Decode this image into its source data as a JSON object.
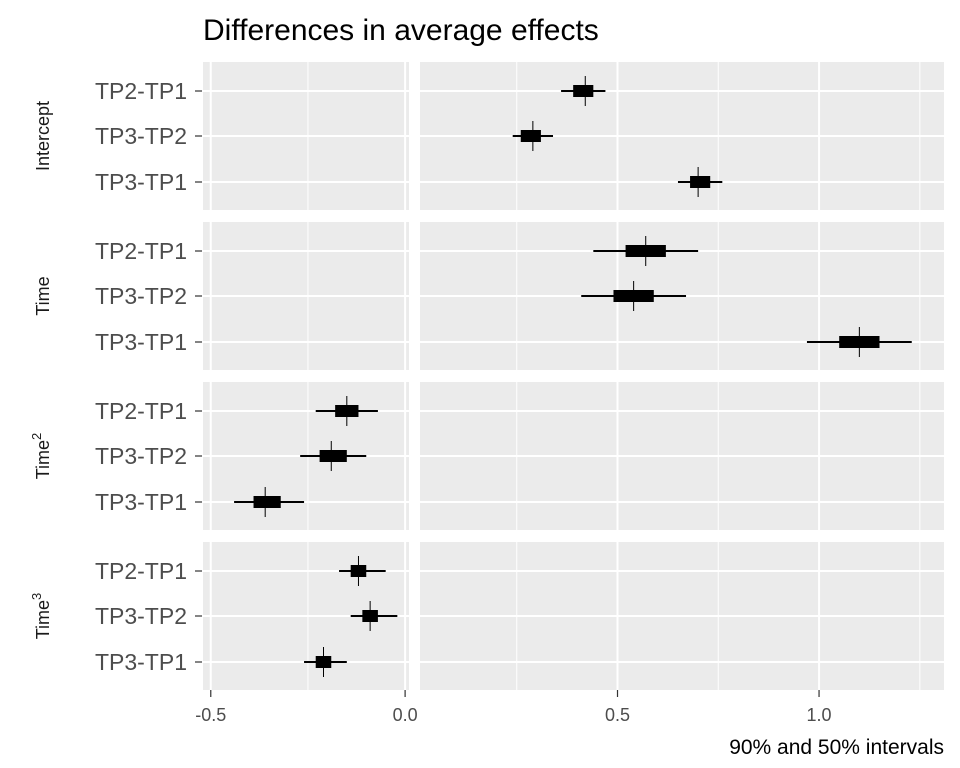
{
  "chart_data": {
    "type": "interval",
    "title": "Differences in average effects",
    "caption": "90% and 50% intervals",
    "x_ticks": [
      -0.5,
      0.0,
      0.5,
      1.0
    ],
    "x_tick_labels": [
      "-0.5",
      "0.0",
      "0.5",
      "1.0"
    ],
    "xlim": [
      -0.52,
      1.31
    ],
    "categories": [
      "TP2-TP1",
      "TP3-TP2",
      "TP3-TP1"
    ],
    "facets": [
      {
        "label": "Intercept",
        "sup": "",
        "rows": [
          {
            "label": "TP2-TP1",
            "median": 0.42,
            "lo50": 0.39,
            "hi50": 0.44,
            "lo90": 0.36,
            "hi90": 0.47
          },
          {
            "label": "TP3-TP2",
            "median": 0.29,
            "lo50": 0.26,
            "hi50": 0.31,
            "lo90": 0.24,
            "hi90": 0.34
          },
          {
            "label": "TP3-TP1",
            "median": 0.7,
            "lo50": 0.68,
            "hi50": 0.73,
            "lo90": 0.65,
            "hi90": 0.76
          }
        ]
      },
      {
        "label": "Time",
        "sup": "",
        "rows": [
          {
            "label": "TP2-TP1",
            "median": 0.57,
            "lo50": 0.52,
            "hi50": 0.62,
            "lo90": 0.44,
            "hi90": 0.7
          },
          {
            "label": "TP3-TP2",
            "median": 0.54,
            "lo50": 0.49,
            "hi50": 0.59,
            "lo90": 0.41,
            "hi90": 0.67
          },
          {
            "label": "TP3-TP1",
            "median": 1.1,
            "lo50": 1.05,
            "hi50": 1.15,
            "lo90": 0.97,
            "hi90": 1.23
          }
        ]
      },
      {
        "label": "Time",
        "sup": "2",
        "rows": [
          {
            "label": "TP2-TP1",
            "median": -0.15,
            "lo50": -0.18,
            "hi50": -0.12,
            "lo90": -0.23,
            "hi90": -0.07
          },
          {
            "label": "TP3-TP2",
            "median": -0.19,
            "lo50": -0.22,
            "hi50": -0.15,
            "lo90": -0.27,
            "hi90": -0.1
          },
          {
            "label": "TP3-TP1",
            "median": -0.36,
            "lo50": -0.39,
            "hi50": -0.32,
            "lo90": -0.44,
            "hi90": -0.26
          }
        ]
      },
      {
        "label": "Time",
        "sup": "3",
        "rows": [
          {
            "label": "TP2-TP1",
            "median": -0.12,
            "lo50": -0.14,
            "hi50": -0.1,
            "lo90": -0.17,
            "hi90": -0.05
          },
          {
            "label": "TP3-TP2",
            "median": -0.09,
            "lo50": -0.11,
            "hi50": -0.07,
            "lo90": -0.14,
            "hi90": -0.02
          },
          {
            "label": "TP3-TP1",
            "median": -0.21,
            "lo50": -0.23,
            "hi50": -0.19,
            "lo90": -0.26,
            "hi90": -0.15
          }
        ]
      }
    ]
  }
}
